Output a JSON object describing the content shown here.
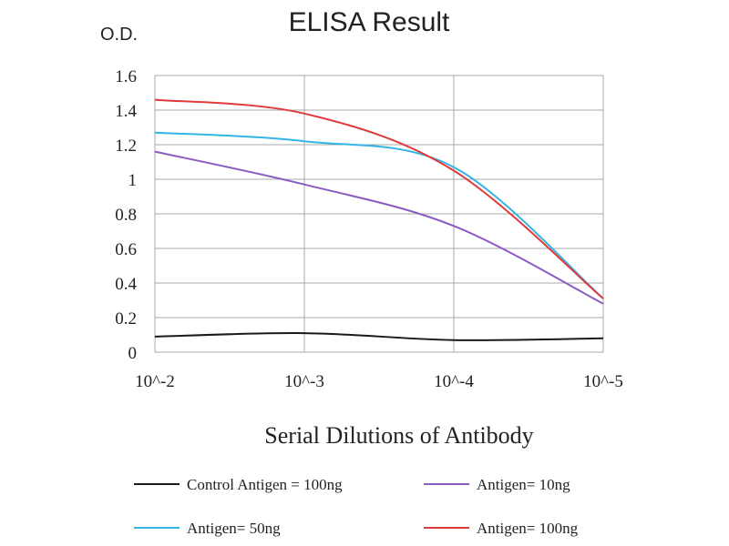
{
  "chart_data": {
    "type": "line",
    "title": "ELISA Result",
    "ylabel": "O.D.",
    "xlabel": "Serial Dilutions of Antibody",
    "categories": [
      "10^-2",
      "10^-3",
      "10^-4",
      "10^-5"
    ],
    "ylim": [
      0,
      1.6
    ],
    "yticks": [
      "0",
      "0.2",
      "0.4",
      "0.6",
      "0.8",
      "1",
      "1.2",
      "1.4",
      "1.6"
    ],
    "grid": true,
    "legend_position": "bottom",
    "series": [
      {
        "name": "Control Antigen = 100ng",
        "color": "#1a1a1a",
        "values": [
          0.09,
          0.11,
          0.07,
          0.08
        ]
      },
      {
        "name": "Antigen= 10ng",
        "color": "#8a5cc2",
        "values": [
          1.16,
          0.97,
          0.73,
          0.28
        ]
      },
      {
        "name": "Antigen= 50ng",
        "color": "#33b5e5",
        "values": [
          1.27,
          1.22,
          1.07,
          0.31
        ]
      },
      {
        "name": "Antigen= 100ng",
        "color": "#e03a3a",
        "values": [
          1.46,
          1.38,
          1.05,
          0.31
        ]
      }
    ]
  }
}
